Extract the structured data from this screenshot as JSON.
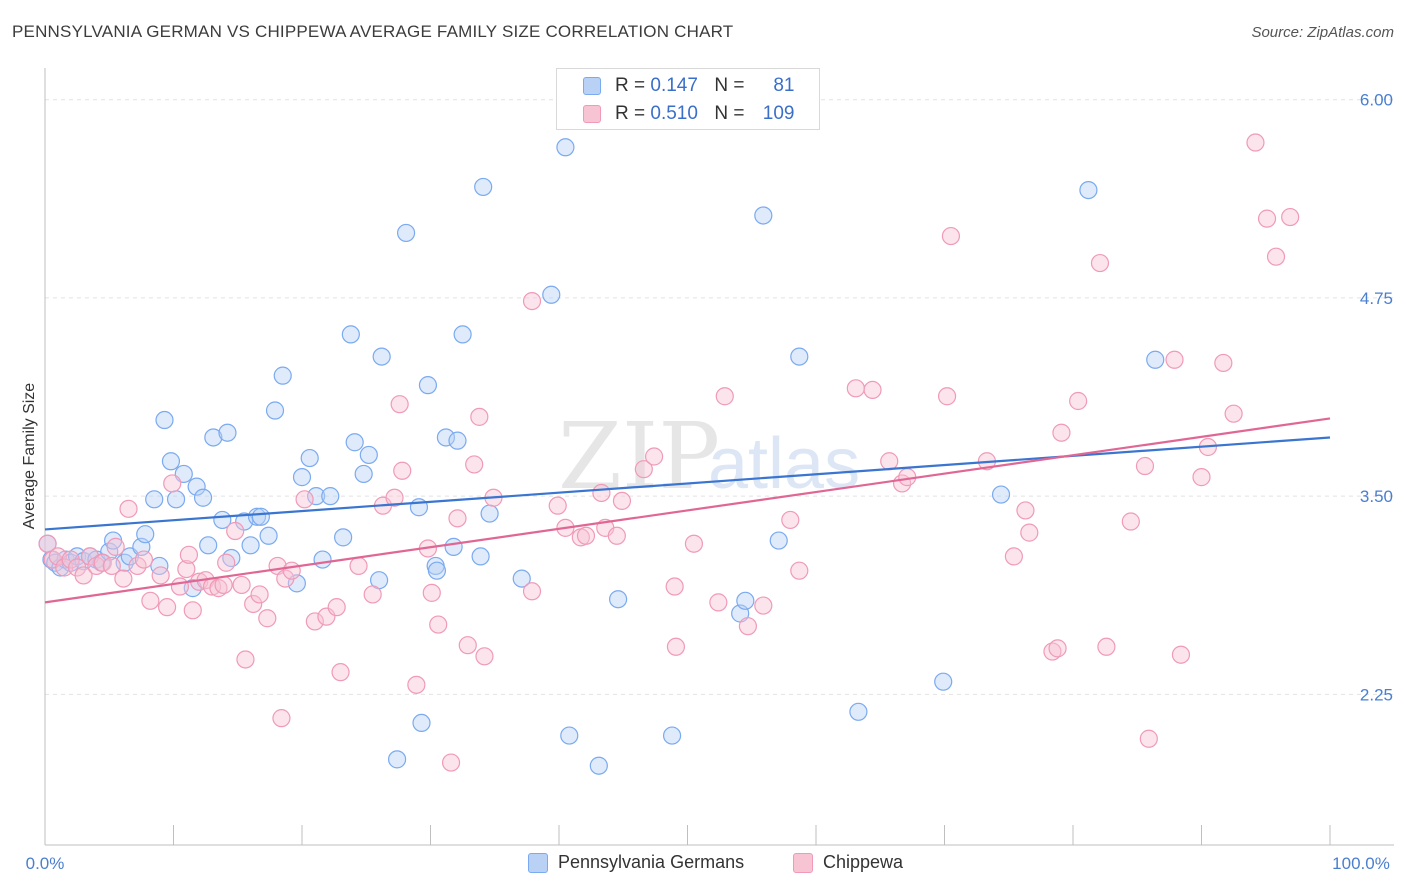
{
  "title": "PENNSYLVANIA GERMAN VS CHIPPEWA AVERAGE FAMILY SIZE CORRELATION CHART",
  "source": "Source: ZipAtlas.com",
  "watermark": {
    "zip": "ZIP",
    "atlas": "atlas"
  },
  "legend_top": [
    {
      "r_label": "R =",
      "r_value": "0.147",
      "n_label": "N =",
      "n_value": "81"
    },
    {
      "r_label": "R =",
      "r_value": "0.510",
      "n_label": "N =",
      "n_value": "109"
    }
  ],
  "chart_data": {
    "type": "scatter",
    "title": "PENNSYLVANIA GERMAN VS CHIPPEWA AVERAGE FAMILY SIZE CORRELATION CHART",
    "xlabel": "",
    "ylabel": "Average Family Size",
    "xlim": [
      0,
      100
    ],
    "ylim": [
      1.3,
      6.2
    ],
    "x_tick_labels": [
      "0.0%",
      "100.0%"
    ],
    "y_ticks": [
      2.25,
      3.5,
      4.75,
      6.0
    ],
    "y_tick_labels": [
      "2.25",
      "3.50",
      "4.75",
      "6.00"
    ],
    "grid": true,
    "legend_placement": "bottom",
    "series": [
      {
        "name": "Pennsylvania Germans",
        "color": "#7aaaf0",
        "fill": "#b8d1f5",
        "line_color": "#3a75d0",
        "R": 0.147,
        "N": 81,
        "trend": [
          [
            0,
            3.29
          ],
          [
            100,
            3.87
          ]
        ],
        "points": [
          [
            0.2,
            3.2
          ],
          [
            0.5,
            3.1
          ],
          [
            0.8,
            3.08
          ],
          [
            1.2,
            3.05
          ],
          [
            1.6,
            3.1
          ],
          [
            2.0,
            3.08
          ],
          [
            2.5,
            3.12
          ],
          [
            3.0,
            3.09
          ],
          [
            3.5,
            3.12
          ],
          [
            4.0,
            3.1
          ],
          [
            4.4,
            3.08
          ],
          [
            5.0,
            3.15
          ],
          [
            5.3,
            3.22
          ],
          [
            6.2,
            3.08
          ],
          [
            6.6,
            3.12
          ],
          [
            7.5,
            3.18
          ],
          [
            7.8,
            3.26
          ],
          [
            8.5,
            3.48
          ],
          [
            8.9,
            3.06
          ],
          [
            9.3,
            3.98
          ],
          [
            9.8,
            3.72
          ],
          [
            10.2,
            3.48
          ],
          [
            10.8,
            3.64
          ],
          [
            11.5,
            2.92
          ],
          [
            11.8,
            3.56
          ],
          [
            12.3,
            3.49
          ],
          [
            12.7,
            3.19
          ],
          [
            13.1,
            3.87
          ],
          [
            13.8,
            3.35
          ],
          [
            14.2,
            3.9
          ],
          [
            14.5,
            3.11
          ],
          [
            15.5,
            3.34
          ],
          [
            16.0,
            3.19
          ],
          [
            16.5,
            3.37
          ],
          [
            16.8,
            3.37
          ],
          [
            17.4,
            3.25
          ],
          [
            17.9,
            4.04
          ],
          [
            18.5,
            4.26
          ],
          [
            19.6,
            2.95
          ],
          [
            20.0,
            3.62
          ],
          [
            20.6,
            3.74
          ],
          [
            21.1,
            3.5
          ],
          [
            21.6,
            3.1
          ],
          [
            22.2,
            3.5
          ],
          [
            23.2,
            3.24
          ],
          [
            23.8,
            4.52
          ],
          [
            24.1,
            3.84
          ],
          [
            24.8,
            3.64
          ],
          [
            25.2,
            3.76
          ],
          [
            26.0,
            2.97
          ],
          [
            26.2,
            4.38
          ],
          [
            27.4,
            1.84
          ],
          [
            28.1,
            5.16
          ],
          [
            29.1,
            3.43
          ],
          [
            29.3,
            2.07
          ],
          [
            29.8,
            4.2
          ],
          [
            30.4,
            3.06
          ],
          [
            30.5,
            3.03
          ],
          [
            31.2,
            3.87
          ],
          [
            31.8,
            3.18
          ],
          [
            32.1,
            3.85
          ],
          [
            32.5,
            4.52
          ],
          [
            33.9,
            3.12
          ],
          [
            34.1,
            5.45
          ],
          [
            34.6,
            3.39
          ],
          [
            37.1,
            2.98
          ],
          [
            39.4,
            4.77
          ],
          [
            40.5,
            5.7
          ],
          [
            40.8,
            1.99
          ],
          [
            43.1,
            1.8
          ],
          [
            44.6,
            2.85
          ],
          [
            48.8,
            1.99
          ],
          [
            54.1,
            2.76
          ],
          [
            54.5,
            2.84
          ],
          [
            55.9,
            5.27
          ],
          [
            57.1,
            3.22
          ],
          [
            58.7,
            4.38
          ],
          [
            63.3,
            2.14
          ],
          [
            69.9,
            2.33
          ],
          [
            74.4,
            3.51
          ],
          [
            81.2,
            5.43
          ],
          [
            86.4,
            4.36
          ]
        ]
      },
      {
        "name": "Chippewa",
        "color": "#f09ab8",
        "fill": "#f7c4d4",
        "line_color": "#e06694",
        "R": 0.51,
        "N": 109,
        "trend": [
          [
            0,
            2.83
          ],
          [
            100,
            3.99
          ]
        ],
        "points": [
          [
            0.2,
            3.2
          ],
          [
            0.6,
            3.1
          ],
          [
            1.0,
            3.12
          ],
          [
            1.5,
            3.05
          ],
          [
            2.0,
            3.1
          ],
          [
            2.5,
            3.05
          ],
          [
            3.0,
            3.0
          ],
          [
            3.5,
            3.12
          ],
          [
            4.0,
            3.06
          ],
          [
            4.5,
            3.08
          ],
          [
            5.2,
            3.06
          ],
          [
            5.5,
            3.18
          ],
          [
            6.1,
            2.98
          ],
          [
            6.5,
            3.42
          ],
          [
            7.2,
            3.06
          ],
          [
            7.7,
            3.1
          ],
          [
            8.2,
            2.84
          ],
          [
            9.0,
            3.0
          ],
          [
            9.5,
            2.8
          ],
          [
            9.9,
            3.58
          ],
          [
            10.5,
            2.93
          ],
          [
            11.0,
            3.04
          ],
          [
            11.2,
            3.13
          ],
          [
            11.5,
            2.78
          ],
          [
            12.0,
            2.96
          ],
          [
            12.5,
            2.97
          ],
          [
            13.0,
            2.93
          ],
          [
            13.5,
            2.92
          ],
          [
            13.9,
            2.94
          ],
          [
            14.1,
            3.08
          ],
          [
            14.8,
            3.28
          ],
          [
            15.3,
            2.94
          ],
          [
            15.6,
            2.47
          ],
          [
            16.2,
            2.82
          ],
          [
            16.7,
            2.88
          ],
          [
            17.3,
            2.73
          ],
          [
            18.1,
            3.06
          ],
          [
            18.4,
            2.1
          ],
          [
            18.7,
            2.98
          ],
          [
            19.2,
            3.03
          ],
          [
            20.2,
            3.48
          ],
          [
            21.0,
            2.71
          ],
          [
            21.9,
            2.74
          ],
          [
            22.7,
            2.8
          ],
          [
            23.0,
            2.39
          ],
          [
            24.4,
            3.06
          ],
          [
            25.5,
            2.88
          ],
          [
            26.3,
            3.44
          ],
          [
            27.2,
            3.49
          ],
          [
            27.6,
            4.08
          ],
          [
            27.8,
            3.66
          ],
          [
            28.9,
            2.31
          ],
          [
            29.8,
            3.17
          ],
          [
            30.1,
            2.89
          ],
          [
            30.6,
            2.69
          ],
          [
            31.6,
            1.82
          ],
          [
            32.1,
            3.36
          ],
          [
            32.9,
            2.56
          ],
          [
            33.4,
            3.7
          ],
          [
            33.8,
            4.0
          ],
          [
            34.2,
            2.49
          ],
          [
            34.9,
            3.49
          ],
          [
            37.9,
            4.73
          ],
          [
            37.9,
            2.9
          ],
          [
            39.9,
            3.44
          ],
          [
            40.5,
            3.3
          ],
          [
            41.7,
            3.24
          ],
          [
            42.1,
            3.25
          ],
          [
            43.3,
            3.52
          ],
          [
            43.6,
            3.3
          ],
          [
            44.5,
            3.25
          ],
          [
            44.9,
            3.47
          ],
          [
            46.6,
            3.67
          ],
          [
            47.4,
            3.75
          ],
          [
            49.0,
            2.93
          ],
          [
            49.1,
            2.55
          ],
          [
            50.5,
            3.2
          ],
          [
            52.4,
            2.83
          ],
          [
            52.9,
            4.13
          ],
          [
            54.7,
            2.68
          ],
          [
            55.9,
            2.81
          ],
          [
            58.0,
            3.35
          ],
          [
            58.7,
            3.03
          ],
          [
            63.1,
            4.18
          ],
          [
            64.4,
            4.17
          ],
          [
            65.7,
            3.72
          ],
          [
            66.7,
            3.58
          ],
          [
            67.1,
            3.62
          ],
          [
            70.2,
            4.13
          ],
          [
            70.5,
            5.14
          ],
          [
            73.3,
            3.72
          ],
          [
            75.4,
            3.12
          ],
          [
            76.3,
            3.41
          ],
          [
            76.6,
            3.27
          ],
          [
            78.4,
            2.52
          ],
          [
            78.8,
            2.54
          ],
          [
            79.1,
            3.9
          ],
          [
            80.4,
            4.1
          ],
          [
            82.1,
            4.97
          ],
          [
            82.6,
            2.55
          ],
          [
            84.5,
            3.34
          ],
          [
            85.6,
            3.69
          ],
          [
            85.9,
            1.97
          ],
          [
            87.9,
            4.36
          ],
          [
            88.4,
            2.5
          ],
          [
            90.0,
            3.62
          ],
          [
            90.5,
            3.81
          ],
          [
            91.7,
            4.34
          ],
          [
            92.5,
            4.02
          ],
          [
            94.2,
            5.73
          ],
          [
            95.1,
            5.25
          ],
          [
            95.8,
            5.01
          ],
          [
            96.9,
            5.26
          ]
        ]
      }
    ]
  }
}
